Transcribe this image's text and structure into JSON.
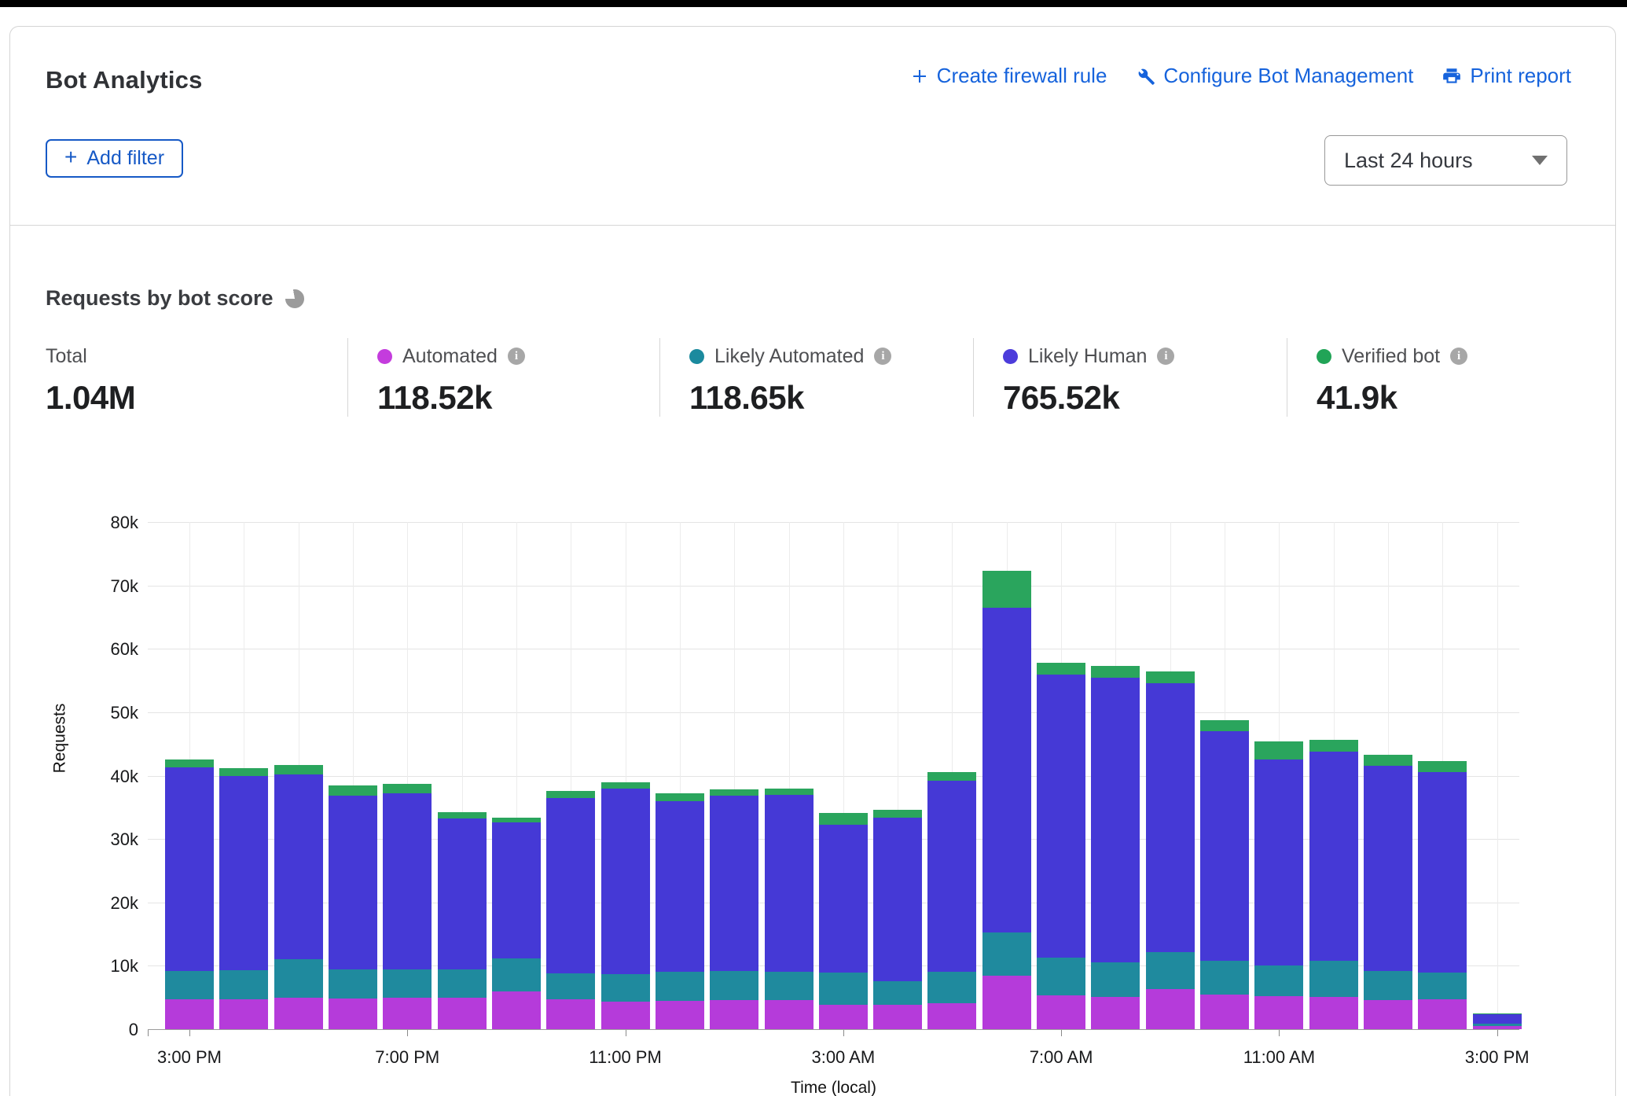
{
  "window": {
    "title": "Bot Analytics"
  },
  "header": {
    "title": "Bot Analytics",
    "links": [
      {
        "id": "create-firewall-rule",
        "label": "Create firewall rule",
        "icon": "plus-icon"
      },
      {
        "id": "configure-bot-management",
        "label": "Configure Bot Management",
        "icon": "wrench-icon"
      },
      {
        "id": "print-report",
        "label": "Print report",
        "icon": "printer-icon"
      }
    ],
    "add_filter_label": "Add filter",
    "time_range_selected": "Last 24 hours"
  },
  "section": {
    "title": "Requests by bot score",
    "icon": "pie-chart-icon"
  },
  "stats": [
    {
      "id": "total",
      "label": "Total",
      "value": "1.04M",
      "dot_color": null,
      "has_info": false
    },
    {
      "id": "automated",
      "label": "Automated",
      "value": "118.52k",
      "dot_color": "#c43cdd",
      "has_info": true
    },
    {
      "id": "likely-automated",
      "label": "Likely Automated",
      "value": "118.65k",
      "dot_color": "#1b8a9e",
      "has_info": true
    },
    {
      "id": "likely-human",
      "label": "Likely Human",
      "value": "765.52k",
      "dot_color": "#4c3cdb",
      "has_info": true
    },
    {
      "id": "verified-bot",
      "label": "Verified bot",
      "value": "41.9k",
      "dot_color": "#21a457",
      "has_info": true
    }
  ],
  "colors": {
    "link_blue": "#1663dc",
    "grid_h": "#e4e4e4",
    "grid_v": "#ececec",
    "axis": "#9b9b9b"
  },
  "chart_data": {
    "type": "bar",
    "stacked": true,
    "title": "Requests by bot score",
    "xlabel": "Time (local)",
    "ylabel": "Requests",
    "ylim": [
      0,
      80000
    ],
    "grid": true,
    "values_unit": "thousands of requests",
    "y_ticks": [
      "0",
      "10k",
      "20k",
      "30k",
      "40k",
      "50k",
      "60k",
      "70k",
      "80k"
    ],
    "categories": [
      "3:00 PM",
      "4:00 PM",
      "5:00 PM",
      "6:00 PM",
      "7:00 PM",
      "8:00 PM",
      "9:00 PM",
      "10:00 PM",
      "11:00 PM",
      "12:00 AM",
      "1:00 AM",
      "2:00 AM",
      "3:00 AM",
      "4:00 AM",
      "5:00 AM",
      "6:00 AM",
      "7:00 AM",
      "8:00 AM",
      "9:00 AM",
      "10:00 AM",
      "11:00 AM",
      "12:00 PM",
      "1:00 PM",
      "2:00 PM",
      "3:00 PM"
    ],
    "x_tick_indices": [
      0,
      4,
      8,
      12,
      16,
      20,
      24
    ],
    "x_tick_labels": [
      "3:00 PM",
      "7:00 PM",
      "11:00 PM",
      "3:00 AM",
      "7:00 AM",
      "11:00 AM",
      "3:00 PM"
    ],
    "series": [
      {
        "name": "Automated",
        "color": "#b53bda",
        "values": [
          4.7,
          4.7,
          5.0,
          4.8,
          5.0,
          5.0,
          6.0,
          4.7,
          4.3,
          4.5,
          4.6,
          4.6,
          3.9,
          3.9,
          4.1,
          8.4,
          5.3,
          5.1,
          6.3,
          5.5,
          5.2,
          5.1,
          4.6,
          4.7,
          0.5
        ]
      },
      {
        "name": "Likely Automated",
        "color": "#1f8a9e",
        "values": [
          4.5,
          4.6,
          6.0,
          4.6,
          4.4,
          4.4,
          5.2,
          4.1,
          4.4,
          4.5,
          4.6,
          4.4,
          5.0,
          3.7,
          4.9,
          6.9,
          6.0,
          5.4,
          5.8,
          5.3,
          4.8,
          5.7,
          4.6,
          4.2,
          0.4
        ]
      },
      {
        "name": "Likely Human",
        "color": "#4539d6",
        "values": [
          32.1,
          30.6,
          29.2,
          27.5,
          27.8,
          23.8,
          21.4,
          27.7,
          29.3,
          27.0,
          27.6,
          28.0,
          23.3,
          25.8,
          30.2,
          51.2,
          44.7,
          44.9,
          42.5,
          36.2,
          32.5,
          33.0,
          32.4,
          31.6,
          1.5
        ]
      },
      {
        "name": "Verified bot",
        "color": "#2aa55d",
        "values": [
          1.2,
          1.3,
          1.5,
          1.5,
          1.5,
          1.0,
          0.8,
          1.1,
          1.0,
          1.2,
          1.0,
          1.0,
          1.9,
          1.2,
          1.3,
          5.8,
          1.8,
          1.9,
          1.8,
          1.8,
          2.9,
          1.8,
          1.7,
          1.8,
          0.1
        ]
      }
    ],
    "legend_position": "top"
  }
}
